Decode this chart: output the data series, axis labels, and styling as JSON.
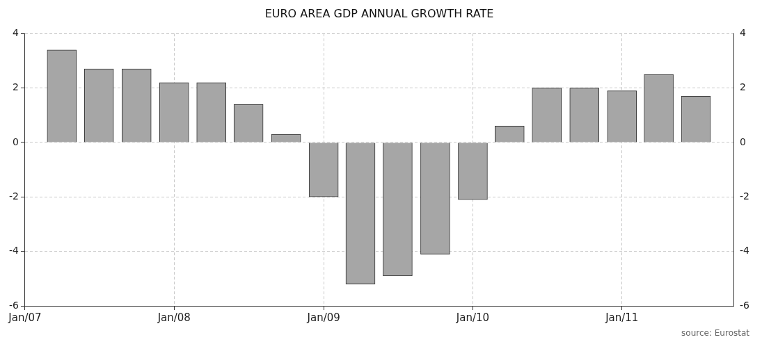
{
  "chart_data": {
    "type": "bar",
    "title": "EURO AREA GDP ANNUAL GROWTH RATE",
    "x": [
      "2007-04",
      "2007-07",
      "2007-10",
      "2008-01",
      "2008-04",
      "2008-07",
      "2008-10",
      "2009-01",
      "2009-04",
      "2009-07",
      "2009-10",
      "2010-01",
      "2010-04",
      "2010-07",
      "2010-10",
      "2011-01",
      "2011-04",
      "2011-07"
    ],
    "values": [
      3.4,
      2.7,
      2.7,
      2.2,
      2.2,
      1.4,
      0.3,
      -2.0,
      -5.2,
      -4.9,
      -4.1,
      -2.1,
      0.6,
      2.0,
      2.0,
      1.9,
      2.5,
      1.7
    ],
    "color": "#a6a6a6",
    "xlim": [
      "2007-01",
      "2011-10"
    ],
    "xticks": [
      {
        "value": "2007-01",
        "label": "Jan/07"
      },
      {
        "value": "2008-01",
        "label": "Jan/08"
      },
      {
        "value": "2009-01",
        "label": "Jan/09"
      },
      {
        "value": "2010-01",
        "label": "Jan/10"
      },
      {
        "value": "2011-01",
        "label": "Jan/11"
      }
    ],
    "ylim": [
      -6,
      4
    ],
    "yticks": [
      -6,
      -4,
      -2,
      0,
      2,
      4
    ],
    "y2lim": [
      -6,
      4
    ],
    "y2ticks": [
      -6,
      -4,
      -2,
      0,
      2,
      4
    ],
    "grid": true,
    "legend": false,
    "annotations": [
      "source: Eurostat"
    ]
  }
}
